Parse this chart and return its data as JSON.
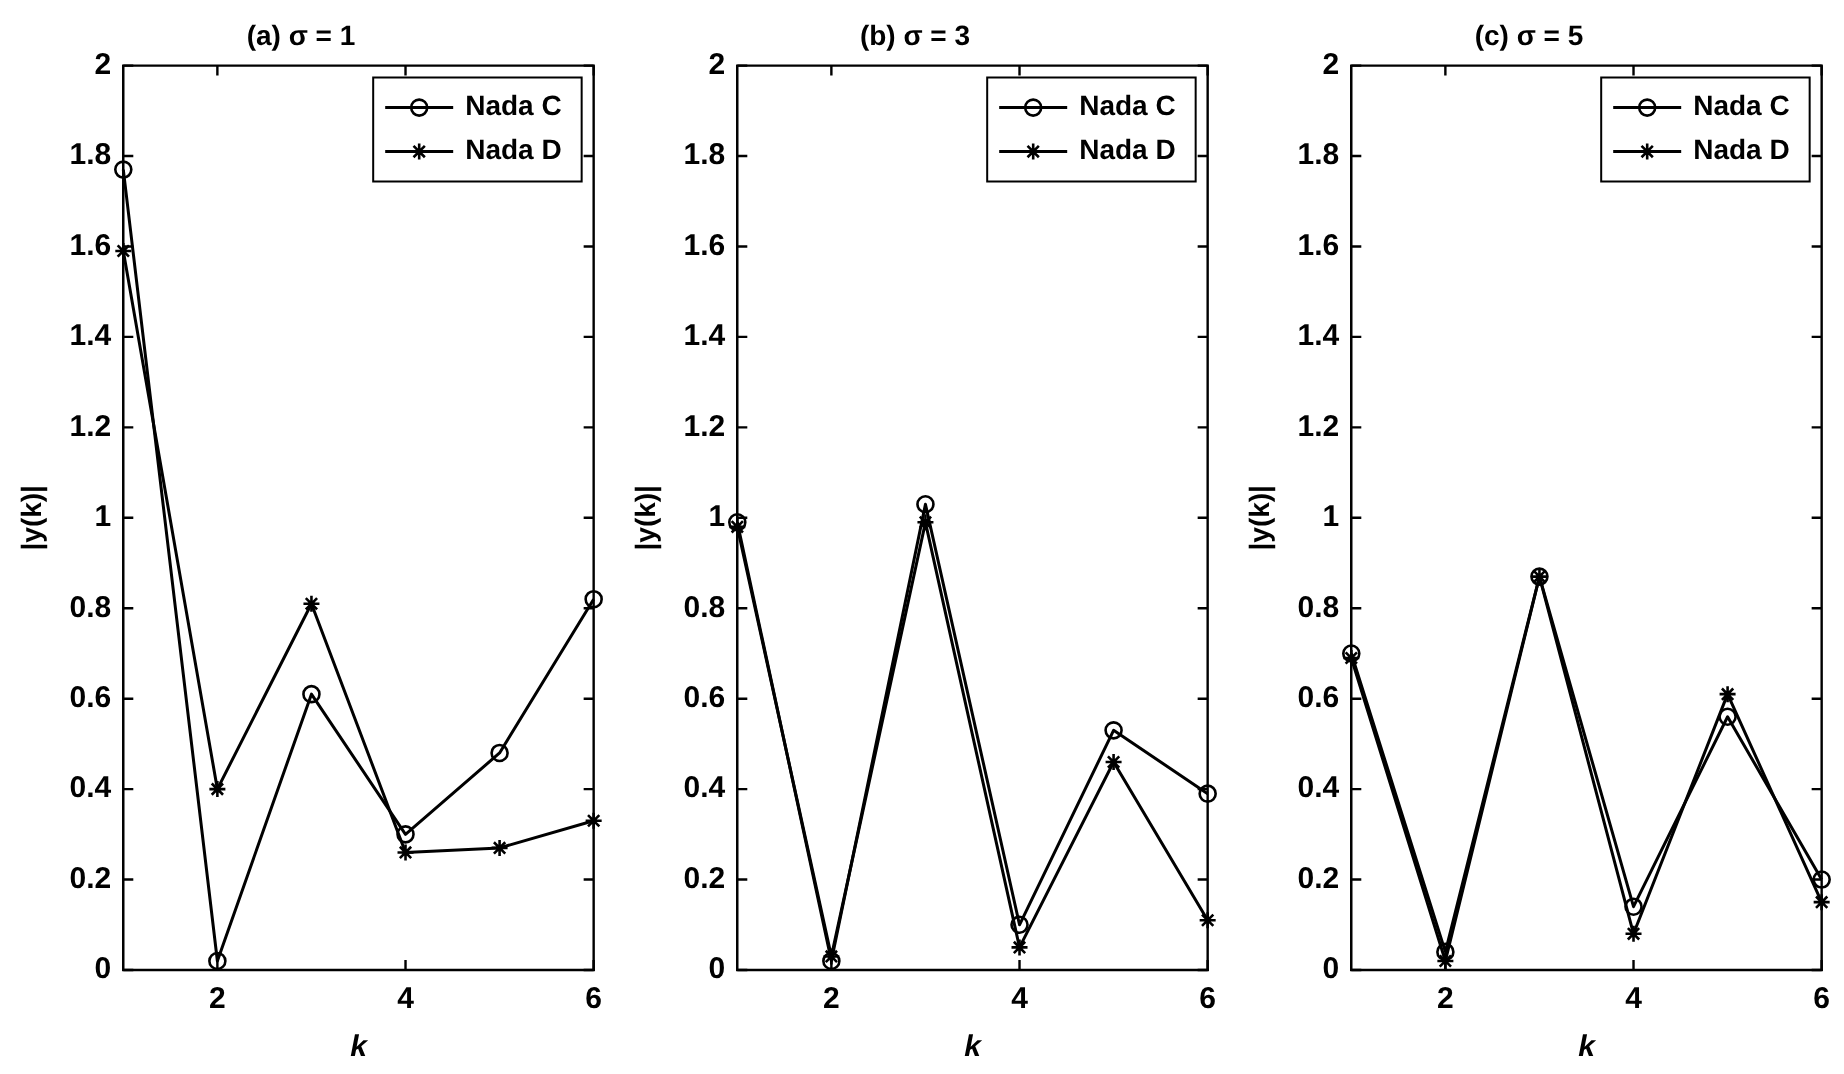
{
  "chart_data": [
    {
      "type": "line",
      "title": "(a) σ = 1",
      "xlabel": "k",
      "ylabel": "|y(k)|",
      "x": [
        1,
        2,
        3,
        4,
        5,
        6
      ],
      "xlim": [
        1,
        6
      ],
      "xticks": [
        2,
        4,
        6
      ],
      "ylim": [
        0,
        2
      ],
      "yticks": [
        0,
        0.2,
        0.4,
        0.6,
        0.8,
        1,
        1.2,
        1.4,
        1.6,
        1.8,
        2
      ],
      "grid": false,
      "legend": "top right",
      "line_style": "solid",
      "series": [
        {
          "name": "Nada C",
          "color": "#000000",
          "marker": "circle",
          "values": [
            1.77,
            0.02,
            0.61,
            0.3,
            0.48,
            0.82
          ]
        },
        {
          "name": "Nada D",
          "color": "#000000",
          "marker": "cross",
          "values": [
            1.59,
            0.4,
            0.81,
            0.26,
            0.27,
            0.33
          ]
        }
      ]
    },
    {
      "type": "line",
      "title": "(b) σ = 3",
      "xlabel": "k",
      "ylabel": "|y(k)|",
      "x": [
        1,
        2,
        3,
        4,
        5,
        6
      ],
      "xlim": [
        1,
        6
      ],
      "xticks": [
        2,
        4,
        6
      ],
      "ylim": [
        0,
        2
      ],
      "yticks": [
        0,
        0.2,
        0.4,
        0.6,
        0.8,
        1,
        1.2,
        1.4,
        1.6,
        1.8,
        2
      ],
      "grid": false,
      "legend": "top right",
      "line_style": "solid",
      "series": [
        {
          "name": "Nada C",
          "color": "#000000",
          "marker": "circle",
          "values": [
            0.99,
            0.02,
            1.03,
            0.1,
            0.53,
            0.39
          ]
        },
        {
          "name": "Nada D",
          "color": "#000000",
          "marker": "cross",
          "values": [
            0.98,
            0.03,
            0.99,
            0.05,
            0.46,
            0.11
          ]
        }
      ]
    },
    {
      "type": "line",
      "title": "(c) σ = 5",
      "xlabel": "k",
      "ylabel": "|y(k)|",
      "x": [
        1,
        2,
        3,
        4,
        5,
        6
      ],
      "xlim": [
        1,
        6
      ],
      "xticks": [
        2,
        4,
        6
      ],
      "ylim": [
        0,
        2
      ],
      "yticks": [
        0,
        0.2,
        0.4,
        0.6,
        0.8,
        1,
        1.2,
        1.4,
        1.6,
        1.8,
        2
      ],
      "grid": false,
      "legend": "top right",
      "line_style": "solid",
      "series": [
        {
          "name": "Nada C",
          "color": "#000000",
          "marker": "circle",
          "values": [
            0.7,
            0.04,
            0.87,
            0.14,
            0.56,
            0.2
          ]
        },
        {
          "name": "Nada D",
          "color": "#000000",
          "marker": "cross",
          "values": [
            0.69,
            0.02,
            0.87,
            0.08,
            0.61,
            0.15
          ]
        }
      ]
    }
  ]
}
